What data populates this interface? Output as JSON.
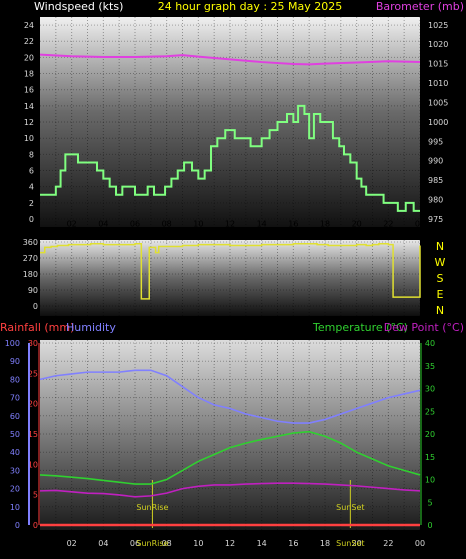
{
  "colors": {
    "background": "#000000",
    "tick_text": "#d8d8d8",
    "title": "#ffff00",
    "windspeed_label": "#ffffff",
    "barometer": "#e040e0",
    "windspeed": "#80ff80",
    "wind_direction": "#e0e030",
    "rainfall": "#ff4040",
    "humidity": "#8080ff",
    "temperature": "#30d030",
    "dew_point": "#c020c0",
    "sun_marker": "#d0d020"
  },
  "title": "24 hour graph day : 25 May 2025",
  "chart_data": [
    {
      "type": "line",
      "title": "24 hour graph day : 25 May 2025",
      "xlabel": "",
      "ylabel": "Windspeed (kts)",
      "y2label": "Barometer (mb)",
      "x_ticks": [
        "02",
        "04",
        "06",
        "08",
        "10",
        "12",
        "14",
        "16",
        "18",
        "20",
        "22",
        "00"
      ],
      "y_ticks": [
        "0",
        "2",
        "4",
        "6",
        "8",
        "10",
        "12",
        "14",
        "16",
        "18",
        "20",
        "22",
        "24"
      ],
      "y2_ticks": [
        "975",
        "980",
        "985",
        "990",
        "995",
        "1000",
        "1005",
        "1010",
        "1015",
        "1020",
        "1025"
      ],
      "ylim": [
        0,
        25
      ],
      "y2lim": [
        975,
        1027
      ],
      "xlim": [
        0,
        24
      ],
      "grid": true,
      "series": [
        {
          "name": "Windspeed (kts)",
          "axis": "left",
          "step": true,
          "color": "#80ff80",
          "x": [
            0,
            0.5,
            1.0,
            1.3,
            1.6,
            2.4,
            3.0,
            3.6,
            4.0,
            4.4,
            4.8,
            5.2,
            6.0,
            6.4,
            6.8,
            7.2,
            7.5,
            7.9,
            8.3,
            8.7,
            9.1,
            9.6,
            10.0,
            10.4,
            10.8,
            11.2,
            11.7,
            12.3,
            12.8,
            13.3,
            14.0,
            14.5,
            15.0,
            15.6,
            16.0,
            16.3,
            16.7,
            17.0,
            17.3,
            17.7,
            18.1,
            18.5,
            18.9,
            19.2,
            19.6,
            20.0,
            20.3,
            20.6,
            21.0,
            21.7,
            22.2,
            22.6,
            23.1,
            23.6,
            24.0
          ],
          "y": [
            3,
            3,
            4,
            6,
            8,
            7,
            7,
            6,
            5,
            4,
            3,
            4,
            3,
            3,
            4,
            3,
            3,
            4,
            5,
            6,
            7,
            6,
            5,
            6,
            9,
            10,
            11,
            10,
            10,
            9,
            10,
            11,
            12,
            13,
            12,
            14,
            13,
            10,
            13,
            12,
            12,
            10,
            9,
            8,
            7,
            5,
            4,
            3,
            3,
            2,
            2,
            1,
            2,
            1,
            1
          ]
        },
        {
          "name": "Barometer (mb)",
          "axis": "right",
          "color": "#e040e0",
          "x": [
            0,
            2,
            4,
            6,
            8,
            9,
            10,
            12,
            14,
            16,
            17,
            18,
            20,
            22,
            24
          ],
          "y": [
            1017.3,
            1016.9,
            1016.7,
            1016.7,
            1016.9,
            1017.2,
            1016.8,
            1016.1,
            1015.4,
            1014.9,
            1014.8,
            1015.0,
            1015.3,
            1015.6,
            1015.4
          ]
        }
      ]
    },
    {
      "type": "line",
      "ylabel": "",
      "y_ticks": [
        "0",
        "90",
        "180",
        "270",
        "360"
      ],
      "right_labels": [
        "N",
        "W",
        "S",
        "E",
        "N"
      ],
      "ylim": [
        0,
        360
      ],
      "xlim": [
        0,
        24
      ],
      "grid": true,
      "series": [
        {
          "name": "Wind direction",
          "step": true,
          "color": "#e0e030",
          "x": [
            0,
            0.3,
            0.7,
            1.1,
            1.8,
            2.6,
            3.2,
            4.0,
            5.0,
            6.0,
            6.4,
            6.5,
            6.9,
            7.1,
            7.3,
            7.5,
            9.0,
            10.0,
            12.0,
            14.0,
            16.0,
            17.5,
            18.2,
            20.0,
            20.6,
            21.0,
            21.4,
            22.0,
            22.3,
            23.4,
            24.0
          ],
          "y": [
            300,
            330,
            335,
            340,
            345,
            345,
            350,
            345,
            345,
            350,
            40,
            40,
            330,
            330,
            300,
            335,
            340,
            345,
            340,
            345,
            350,
            345,
            340,
            345,
            340,
            345,
            350,
            345,
            50,
            50,
            340
          ]
        }
      ]
    },
    {
      "type": "line",
      "xlim": [
        0,
        24
      ],
      "ylabels_top": [
        "Rainfall (mm)",
        "Humidity",
        "Temperature (°C)",
        "Dew Point (°C)"
      ],
      "humidity_ticks": [
        "0",
        "10",
        "20",
        "30",
        "40",
        "50",
        "60",
        "70",
        "80",
        "90",
        "100"
      ],
      "rain_ticks": [
        "0",
        "5",
        "10",
        "15",
        "20",
        "25",
        "30"
      ],
      "temp_ticks": [
        "0",
        "5",
        "10",
        "15",
        "20",
        "25",
        "30",
        "35",
        "40"
      ],
      "x_ticks": [
        "02",
        "04",
        "06",
        "08",
        "10",
        "12",
        "14",
        "16",
        "18",
        "20",
        "22",
        "00"
      ],
      "annotations": [
        {
          "text": "SunRise",
          "x": 7.1
        },
        {
          "text": "SunSet",
          "x": 19.6
        }
      ],
      "sun_events": [
        {
          "text": "SunRise",
          "x": 7.1
        },
        {
          "text": "SunSet",
          "x": 19.6
        }
      ],
      "grid": true,
      "series": [
        {
          "name": "Rainfall (mm)",
          "axis": "rain",
          "color": "#ff4040",
          "x": [
            0,
            24
          ],
          "y": [
            0,
            0
          ]
        },
        {
          "name": "Humidity",
          "axis": "humidity",
          "color": "#8080ff",
          "x": [
            0,
            1,
            2,
            3,
            4,
            5,
            6,
            7,
            8,
            9,
            10,
            11,
            12,
            13,
            14,
            15,
            16,
            17,
            18,
            19,
            20,
            21,
            22,
            23,
            24
          ],
          "y": [
            80,
            82,
            83,
            84,
            84,
            84,
            85,
            85,
            82,
            76,
            70,
            66,
            64,
            61,
            59,
            57,
            56,
            56,
            58,
            61,
            64,
            67,
            70,
            72,
            74
          ]
        },
        {
          "name": "Temperature (°C)",
          "axis": "temp",
          "color": "#30d030",
          "x": [
            0,
            1,
            2,
            3,
            4,
            5,
            6,
            7,
            8,
            9,
            10,
            11,
            12,
            13,
            14,
            15,
            16,
            17,
            18,
            19,
            20,
            21,
            22,
            23,
            24
          ],
          "y": [
            11,
            10.8,
            10.5,
            10.2,
            9.8,
            9.4,
            9.0,
            9.0,
            10,
            12,
            14,
            15.5,
            17,
            18,
            18.8,
            19.5,
            20.2,
            20.5,
            19.5,
            18,
            16,
            14.5,
            13,
            12,
            11
          ]
        },
        {
          "name": "Dew Point (°C)",
          "axis": "temp",
          "color": "#c020c0",
          "x": [
            0,
            1,
            2,
            3,
            4,
            5,
            6,
            7,
            8,
            9,
            10,
            11,
            12,
            13,
            14,
            15,
            16,
            17,
            18,
            19,
            20,
            21,
            22,
            23,
            24
          ],
          "y": [
            7.5,
            7.6,
            7.3,
            7.0,
            6.9,
            6.6,
            6.2,
            6.4,
            7,
            8,
            8.5,
            8.8,
            8.8,
            9,
            9.1,
            9.2,
            9.2,
            9.1,
            9,
            8.8,
            8.6,
            8.3,
            8,
            7.7,
            7.5
          ]
        }
      ]
    }
  ]
}
